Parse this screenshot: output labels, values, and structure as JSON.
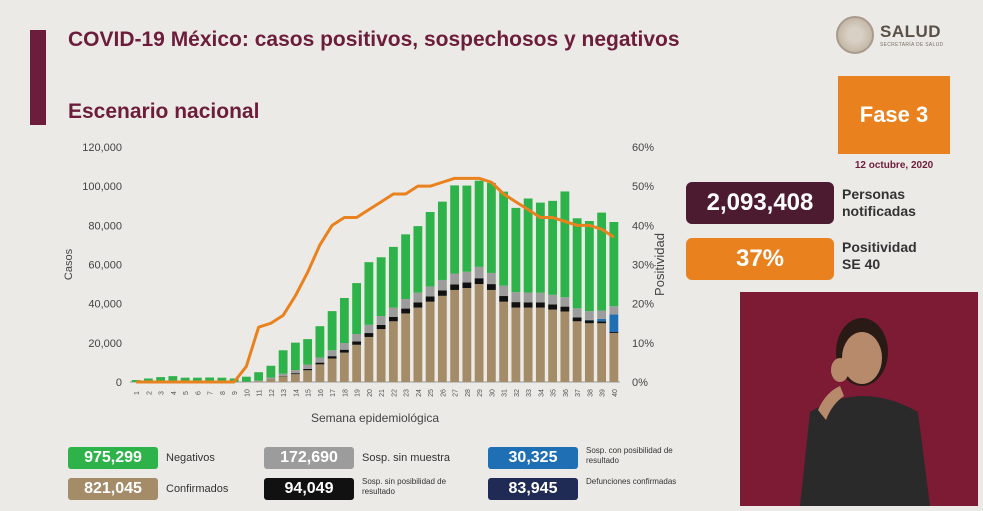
{
  "header": {
    "title": "COVID-19 México: casos positivos, sospechosos y negativos",
    "subtitle": "Escenario nacional",
    "logo_main": "SALUD",
    "logo_sub": "SECRETARÍA DE SALUD"
  },
  "phase": "Fase 3",
  "date": "12 octubre, 2020",
  "stats": {
    "notified_value": "2,093,408",
    "notified_label_1": "Personas",
    "notified_label_2": "notificadas",
    "positivity_value": "37%",
    "positivity_label_1": "Positividad",
    "positivity_label_2": "SE 40"
  },
  "legend": [
    {
      "value": "975,299",
      "label": "Negativos",
      "color": "#2db34a"
    },
    {
      "value": "821,045",
      "label": "Confirmados",
      "color": "#a58c69"
    },
    {
      "value": "172,690",
      "label": "Sosp. sin muestra",
      "color": "#9c9c9c"
    },
    {
      "value": "94,049",
      "label": "Sosp. sin posibilidad de resultado",
      "color": "#111111"
    },
    {
      "value": "30,325",
      "label": "Sosp. con posibilidad de resultado",
      "color": "#1f6fb4"
    },
    {
      "value": "83,945",
      "label": "Defunciones confirmadas",
      "color": "#1f2a55"
    }
  ],
  "chart_data": {
    "type": "bar",
    "stacked": true,
    "xlabel": "Semana epidemiológica",
    "ylabel": "Casos",
    "y2label": "Positividad",
    "ylim": [
      0,
      120000
    ],
    "y2lim": [
      0,
      60
    ],
    "yticks": [
      "0",
      "20,000",
      "40,000",
      "60,000",
      "80,000",
      "100,000",
      "120,000"
    ],
    "y2ticks": [
      "0%",
      "10%",
      "20%",
      "30%",
      "40%",
      "50%",
      "60%"
    ],
    "categories": [
      "1",
      "2",
      "3",
      "4",
      "5",
      "6",
      "7",
      "8",
      "9",
      "10",
      "11",
      "12",
      "13",
      "14",
      "15",
      "16",
      "17",
      "18",
      "19",
      "20",
      "21",
      "22",
      "23",
      "24",
      "25",
      "26",
      "27",
      "28",
      "29",
      "30",
      "31",
      "32",
      "33",
      "34",
      "35",
      "36",
      "37",
      "38",
      "39",
      "40"
    ],
    "series": [
      {
        "name": "Confirmados",
        "color": "#a58c69",
        "values": [
          0,
          0,
          0,
          0,
          0,
          0,
          0,
          0,
          0,
          100,
          400,
          1500,
          2800,
          4000,
          6000,
          9000,
          12000,
          15000,
          19000,
          23000,
          27000,
          31000,
          35000,
          38000,
          41000,
          44000,
          47000,
          48000,
          50000,
          47000,
          41000,
          38000,
          38000,
          38000,
          37000,
          36000,
          31000,
          30000,
          30000,
          25000
        ]
      },
      {
        "name": "Sosp. sin posibilidad de resultado",
        "color": "#111111",
        "values": [
          0,
          0,
          0,
          0,
          0,
          0,
          0,
          0,
          0,
          0,
          0,
          100,
          200,
          500,
          700,
          900,
          1200,
          1500,
          1700,
          2000,
          2200,
          2300,
          2500,
          2600,
          2700,
          2800,
          2800,
          2800,
          3000,
          3000,
          2900,
          2800,
          2700,
          2600,
          2600,
          2500,
          2000,
          1500,
          1000,
          500
        ]
      },
      {
        "name": "Sosp. con posibilidad de resultado",
        "color": "#1f6fb4",
        "values": [
          0,
          0,
          0,
          0,
          0,
          0,
          0,
          0,
          0,
          0,
          0,
          0,
          0,
          0,
          0,
          0,
          0,
          0,
          0,
          0,
          0,
          0,
          0,
          0,
          0,
          0,
          0,
          0,
          0,
          0,
          0,
          0,
          0,
          0,
          0,
          0,
          0,
          200,
          1200,
          9000
        ]
      },
      {
        "name": "Sosp. sin muestra",
        "color": "#9c9c9c",
        "values": [
          0,
          0,
          0,
          0,
          0,
          0,
          0,
          0,
          0,
          100,
          300,
          700,
          1200,
          1600,
          2200,
          2600,
          3000,
          3400,
          3800,
          4200,
          4500,
          4700,
          4900,
          5000,
          5100,
          5300,
          5600,
          5500,
          5800,
          5700,
          5300,
          5100,
          5000,
          5000,
          4900,
          4800,
          4600,
          4500,
          4300,
          4200
        ]
      },
      {
        "name": "Negativos",
        "color": "#2db34a",
        "values": [
          1000,
          1800,
          2500,
          3000,
          2200,
          2200,
          2300,
          2200,
          1800,
          2500,
          4300,
          6000,
          12000,
          14000,
          13000,
          16000,
          20000,
          23000,
          26000,
          32000,
          30000,
          31000,
          33000,
          34000,
          38000,
          40000,
          45000,
          44000,
          44000,
          46000,
          48000,
          43000,
          48000,
          46000,
          48000,
          54000,
          46000,
          46000,
          50000,
          43000
        ]
      }
    ],
    "line": {
      "name": "Positividad",
      "color": "#e9821e",
      "values": [
        0,
        0,
        0,
        0,
        0,
        0,
        0,
        0,
        0,
        4,
        14,
        15,
        17,
        22,
        28,
        35,
        40,
        42,
        42,
        44,
        46,
        48,
        48,
        50,
        50,
        51,
        52,
        52,
        52,
        51,
        48,
        46,
        44,
        42,
        42,
        41,
        40,
        40,
        39,
        37
      ]
    }
  }
}
